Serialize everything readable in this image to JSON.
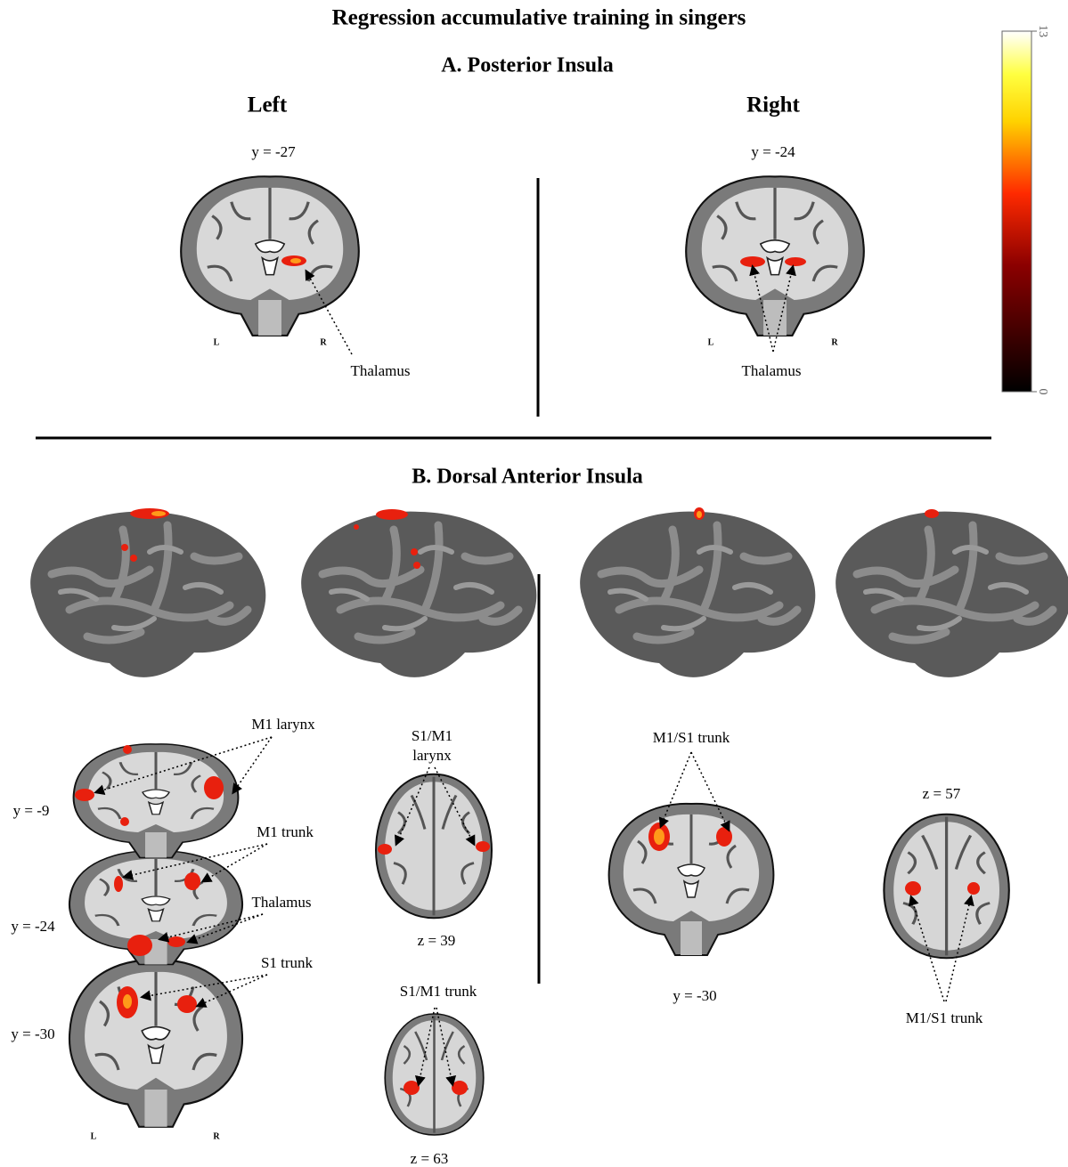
{
  "title": "Regression accumulative training in singers",
  "section_a": {
    "title": "A. Posterior Insula",
    "left": {
      "heading": "Left",
      "slice": "y = -27",
      "label": "Thalamus",
      "orientation": [
        "L",
        "R"
      ]
    },
    "right": {
      "heading": "Right",
      "slice": "y = -24",
      "label": "Thalamus",
      "orientation": [
        "L",
        "R"
      ]
    }
  },
  "colorbar": {
    "lim": [
      0,
      13
    ],
    "ticks": [
      0,
      13
    ]
  },
  "section_b": {
    "title": "B. Dorsal Anterior Insula",
    "left": {
      "coronal_slices": [
        "y = -9",
        "y = -24",
        "y = -30"
      ],
      "labels": [
        "M1 larynx",
        "M1 trunk",
        "Thalamus",
        "S1 trunk"
      ],
      "axial": [
        {
          "label": [
            "S1/M1",
            "larynx"
          ],
          "slice": "z = 39"
        },
        {
          "label": [
            "S1/M1 trunk"
          ],
          "slice": "z = 63"
        }
      ],
      "orientation": [
        "L",
        "R"
      ]
    },
    "right": {
      "coronal": {
        "label": "M1/S1 trunk",
        "slice": "y = -30"
      },
      "axial": {
        "label": "M1/S1 trunk",
        "slice": "z = 57"
      }
    }
  }
}
